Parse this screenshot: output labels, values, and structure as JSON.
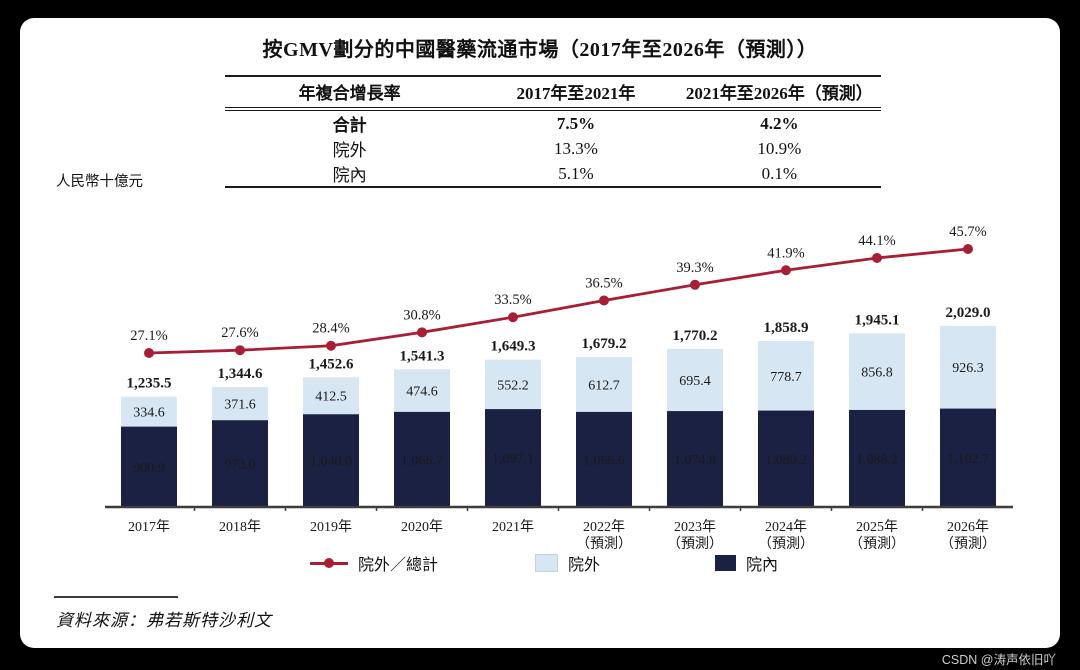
{
  "page": {
    "watermark": "CSDN @涛声依旧吖"
  },
  "title": "按GMV劃分的中國醫藥流通市場（2017年至2026年（預測））",
  "cagr_table": {
    "headers": [
      "年複合增長率",
      "2017年至2021年",
      "2021年至2026年（預測）"
    ],
    "rows": [
      {
        "label": "合計",
        "period1": "7.5%",
        "period2": "4.2%",
        "bold": true
      },
      {
        "label": "院外",
        "period1": "13.3%",
        "period2": "10.9%",
        "bold": false
      },
      {
        "label": "院內",
        "period1": "5.1%",
        "period2": "0.1%",
        "bold": false
      }
    ]
  },
  "chart_data": {
    "type": "combo: stacked bar + line (secondary percent axis)",
    "unit": "人民幣十億元",
    "y_axis": "no visible axis ticks; values labelled on bars",
    "legend_position": "bottom",
    "categories": [
      [
        "2017年"
      ],
      [
        "2018年"
      ],
      [
        "2019年"
      ],
      [
        "2020年"
      ],
      [
        "2021年"
      ],
      [
        "2022年",
        "（預測）"
      ],
      [
        "2023年",
        "（預測）"
      ],
      [
        "2024年",
        "（預測）"
      ],
      [
        "2025年",
        "（預測）"
      ],
      [
        "2026年",
        "（預測）"
      ]
    ],
    "stacked_series": [
      {
        "name": "院內",
        "color": "#1B2142",
        "label_color": "#ffffff",
        "values": [
          900.9,
          973.0,
          1040.0,
          1066.7,
          1097.1,
          1066.6,
          1074.8,
          1080.2,
          1088.2,
          1102.7
        ],
        "labels": [
          "900.9",
          "973.0",
          "1,040.0",
          "1,066.7",
          "1,097.1",
          "1,066.6",
          "1,074.8",
          "1,080.2",
          "1,088.2",
          "1,102.7"
        ]
      },
      {
        "name": "院外",
        "color": "#D6E6F2",
        "label_color": "#1a1a1a",
        "values": [
          334.6,
          371.6,
          412.5,
          474.6,
          552.2,
          612.7,
          695.4,
          778.7,
          856.8,
          926.3
        ],
        "labels": [
          "334.6",
          "371.6",
          "412.5",
          "474.6",
          "552.2",
          "612.7",
          "695.4",
          "778.7",
          "856.8",
          "926.3"
        ]
      }
    ],
    "totals": {
      "values": [
        1235.5,
        1344.6,
        1452.6,
        1541.3,
        1649.3,
        1679.2,
        1770.2,
        1858.9,
        1945.1,
        2029.0
      ],
      "labels": [
        "1,235.5",
        "1,344.6",
        "1,452.6",
        "1,541.3",
        "1,649.3",
        "1,679.2",
        "1,770.2",
        "1,858.9",
        "1,945.1",
        "2,029.0"
      ]
    },
    "line_series": {
      "name": "院外／總計",
      "color": "#A81E35",
      "values_pct": [
        27.1,
        27.6,
        28.4,
        30.8,
        33.5,
        36.5,
        39.3,
        41.9,
        44.1,
        45.7
      ],
      "labels": [
        "27.1%",
        "27.6%",
        "28.4%",
        "30.8%",
        "33.5%",
        "36.5%",
        "39.3%",
        "41.9%",
        "44.1%",
        "45.7%"
      ]
    }
  },
  "source": "資料來源：弗若斯特沙利文"
}
